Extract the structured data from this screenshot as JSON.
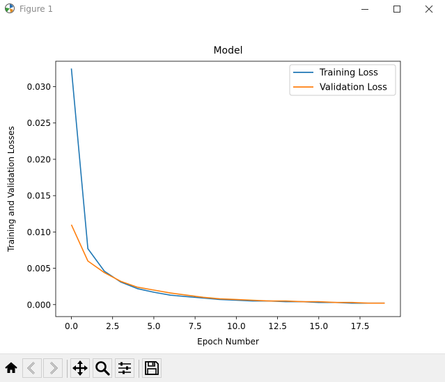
{
  "window": {
    "title": "Figure 1",
    "icons": {
      "app": "matplotlib-icon",
      "minimize": "minimize-icon",
      "maximize": "maximize-icon",
      "close": "close-icon"
    }
  },
  "toolbar": {
    "buttons": [
      {
        "name": "home-button",
        "icon": "home-icon"
      },
      {
        "name": "back-button",
        "icon": "back-arrow-icon"
      },
      {
        "name": "forward-button",
        "icon": "forward-arrow-icon"
      },
      {
        "name": "pan-button",
        "icon": "move-icon"
      },
      {
        "name": "zoom-button",
        "icon": "magnifier-icon"
      },
      {
        "name": "configure-subplots-button",
        "icon": "sliders-icon"
      },
      {
        "name": "save-button",
        "icon": "floppy-disk-icon"
      }
    ]
  },
  "chart_data": {
    "type": "line",
    "title": "Model",
    "xlabel": "Epoch Number",
    "ylabel": "Training and Validation Losses",
    "x": [
      0,
      1,
      2,
      3,
      4,
      5,
      6,
      7,
      8,
      9,
      10,
      11,
      12,
      13,
      14,
      15,
      16,
      17,
      18,
      19
    ],
    "xlim": [
      -0.95,
      19.95
    ],
    "ylim": [
      -0.00165,
      0.0335
    ],
    "xticks": [
      0.0,
      2.5,
      5.0,
      7.5,
      10.0,
      12.5,
      15.0,
      17.5
    ],
    "xtick_labels": [
      "0.0",
      "2.5",
      "5.0",
      "7.5",
      "10.0",
      "12.5",
      "15.0",
      "17.5"
    ],
    "yticks": [
      0.0,
      0.005,
      0.01,
      0.015,
      0.02,
      0.025,
      0.03
    ],
    "ytick_labels": [
      "0.000",
      "0.005",
      "0.010",
      "0.015",
      "0.020",
      "0.025",
      "0.030"
    ],
    "grid": false,
    "legend_position": "upper right",
    "series": [
      {
        "name": "Training Loss",
        "color": "#1f77b4",
        "values": [
          0.0325,
          0.0077,
          0.0046,
          0.0031,
          0.0022,
          0.0017,
          0.0013,
          0.0011,
          0.0009,
          0.0007,
          0.0006,
          0.0005,
          0.0005,
          0.0004,
          0.0004,
          0.0003,
          0.0003,
          0.0002,
          0.0002,
          0.0002
        ]
      },
      {
        "name": "Validation Loss",
        "color": "#ff7f0e",
        "values": [
          0.011,
          0.006,
          0.0044,
          0.0032,
          0.0024,
          0.002,
          0.0016,
          0.0013,
          0.001,
          0.0008,
          0.0007,
          0.0006,
          0.0005,
          0.0005,
          0.0004,
          0.0004,
          0.0003,
          0.0003,
          0.0002,
          0.0002
        ]
      }
    ]
  }
}
